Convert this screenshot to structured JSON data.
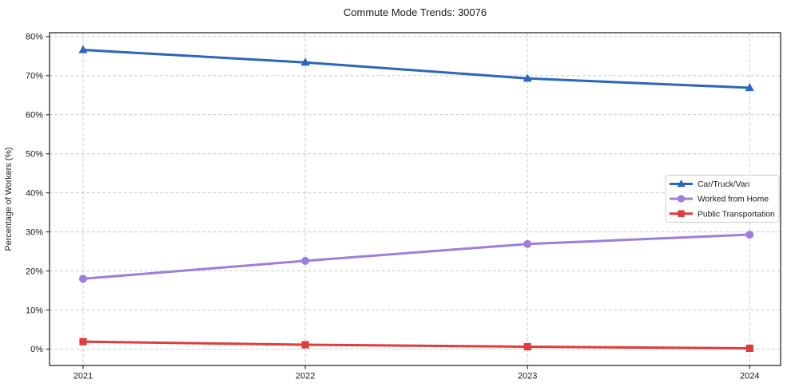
{
  "chart_data": {
    "type": "line",
    "title": "Commute Mode Trends: 30076",
    "xlabel": "",
    "ylabel": "Percentage of Workers (%)",
    "categories": [
      "2021",
      "2022",
      "2023",
      "2024"
    ],
    "series": [
      {
        "name": "Car/Truck/Van",
        "marker": "triangle",
        "color": "#2b65bd",
        "values": [
          76.6,
          73.4,
          69.3,
          66.9
        ]
      },
      {
        "name": "Worked from Home",
        "marker": "circle",
        "color": "#9d7edd",
        "values": [
          18.0,
          22.6,
          26.9,
          29.3
        ]
      },
      {
        "name": "Public Transportation",
        "marker": "square",
        "color": "#e03c3c",
        "values": [
          1.9,
          1.1,
          0.6,
          0.2
        ]
      }
    ],
    "ylim": [
      0,
      80
    ],
    "yticks": [
      0,
      10,
      20,
      30,
      40,
      50,
      60,
      70,
      80
    ],
    "ytick_suffix": "%",
    "grid": true,
    "grid_style": "dashed",
    "legend_position": "center-right",
    "colors": {
      "grid": "#cccccc",
      "spine": "#2b2b2b",
      "text": "#1a1a1a",
      "legend_border": "#cccccc",
      "legend_background": "#ffffff"
    }
  }
}
